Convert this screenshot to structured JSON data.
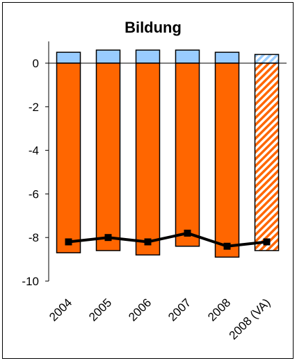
{
  "chart_data": {
    "type": "bar",
    "title": "Bildung",
    "categories": [
      "2004",
      "2005",
      "2006",
      "2007",
      "2008",
      "2008 (VA)"
    ],
    "ylim": [
      -10,
      1
    ],
    "yticks": [
      0,
      -2,
      -4,
      -6,
      -8,
      -10
    ],
    "grid": false,
    "legend": "none",
    "stacked": true,
    "series": [
      {
        "type": "bar",
        "values": [
          0.5,
          0.6,
          0.6,
          0.6,
          0.5,
          0.4
        ],
        "color": "#99ccff",
        "hatched_last": true
      },
      {
        "type": "bar",
        "values": [
          -8.7,
          -8.6,
          -8.8,
          -8.4,
          -8.9,
          -8.6
        ],
        "color": "#ff6600",
        "hatched_last": true
      },
      {
        "type": "line",
        "values": [
          -8.2,
          -8.0,
          -8.2,
          -7.8,
          -8.4,
          -8.2
        ],
        "color": "#000000",
        "marker": "square"
      }
    ]
  }
}
